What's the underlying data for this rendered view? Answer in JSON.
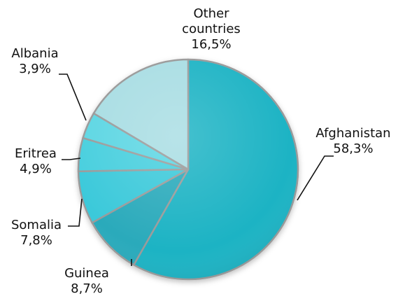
{
  "chart_data": {
    "type": "pie",
    "slices": [
      {
        "name": "Afghanistan",
        "value": 58.3,
        "label": "58,3%",
        "color": "#1fb3c4"
      },
      {
        "name": "Guinea",
        "value": 8.7,
        "label": "8,7%",
        "color": "#29aabb"
      },
      {
        "name": "Somalia",
        "value": 7.8,
        "label": "7,8%",
        "color": "#3ac9da"
      },
      {
        "name": "Eritrea",
        "value": 4.9,
        "label": "4,9%",
        "color": "#47cfde"
      },
      {
        "name": "Albania",
        "value": 3.9,
        "label": "3,9%",
        "color": "#5cd6e3"
      },
      {
        "name": "Other countries",
        "value": 16.5,
        "label": "16,5%",
        "color": "#a8dde3"
      }
    ],
    "start_angle_deg": 0,
    "direction": "clockwise",
    "label_lines": {
      "Afghanistan": [
        "Afghanistan"
      ],
      "Guinea": [
        "Guinea"
      ],
      "Somalia": [
        "Somalia"
      ],
      "Eritrea": [
        "Eritrea"
      ],
      "Albania": [
        "Albania"
      ],
      "Other countries": [
        "Other",
        "countries"
      ]
    }
  }
}
